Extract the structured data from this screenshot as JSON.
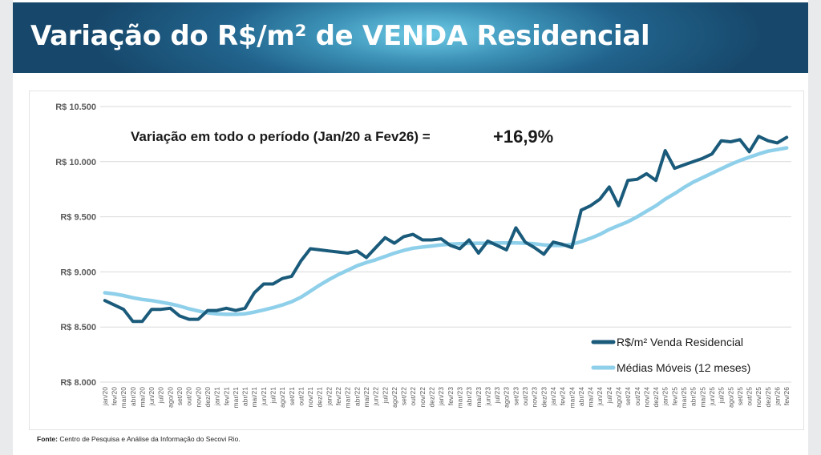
{
  "slide": {
    "title": "Variação do R$/m² de VENDA Residencial",
    "source_label": "Fonte:",
    "source_text": "Centro de Pesquisa e Análise da Informação do Secovi Rio."
  },
  "colors": {
    "series_main": "#1a5a7a",
    "series_avg": "#8ecfea",
    "grid": "#d9d9d9",
    "text": "#595959"
  },
  "chart_data": {
    "type": "line",
    "title": "",
    "xlabel": "",
    "ylabel": "",
    "ylim": [
      8000,
      10500
    ],
    "yticks": [
      8000,
      8500,
      9000,
      9500,
      10000,
      10500
    ],
    "ytick_labels": [
      "R$ 8.000",
      "R$ 8.500",
      "R$ 9.000",
      "R$ 9.500",
      "R$ 10.000",
      "R$ 10.500"
    ],
    "grid": true,
    "legend_position": "bottom-right",
    "annotation": {
      "text": "Variação em todo o período (Jan/20 a Fev26)  =",
      "value": "+16,9%"
    },
    "categories": [
      "jan/20",
      "fev/20",
      "mar/20",
      "abr/20",
      "mai/20",
      "jun/20",
      "jul/20",
      "ago/20",
      "set/20",
      "out/20",
      "nov/20",
      "dez/20",
      "jan/21",
      "fev/21",
      "mar/21",
      "abr/21",
      "mai/21",
      "jun/21",
      "jul/21",
      "ago/21",
      "set/21",
      "out/21",
      "nov/21",
      "dez/21",
      "jan/22",
      "fev/22",
      "mar/22",
      "abr/22",
      "mai/22",
      "jun/22",
      "jul/22",
      "ago/22",
      "set/22",
      "out/22",
      "nov/22",
      "dez/22",
      "jan/23",
      "fev/23",
      "mar/23",
      "abr/23",
      "mai/23",
      "jun/23",
      "jul/23",
      "ago/23",
      "set/23",
      "out/23",
      "nov/23",
      "dez/23",
      "jan/24",
      "fev/24",
      "mar/24",
      "abr/24",
      "mai/24",
      "jun/24",
      "jul/24",
      "ago/24",
      "set/24",
      "out/24",
      "nov/24",
      "dez/24",
      "jan/25",
      "fev/25",
      "mar/25",
      "abr/25",
      "mai/25",
      "jun/25",
      "jul/25",
      "ago/25",
      "set/25",
      "out/25",
      "nov/25",
      "dez/25",
      "jan/26",
      "fev/26"
    ],
    "series": [
      {
        "name": "R$/m² Venda Residencial",
        "values": [
          8740,
          8700,
          8660,
          8550,
          8550,
          8660,
          8660,
          8670,
          8600,
          8570,
          8570,
          8650,
          8650,
          8670,
          8650,
          8670,
          8810,
          8890,
          8890,
          8940,
          8960,
          9100,
          9210,
          9200,
          9190,
          9180,
          9170,
          9190,
          9130,
          9220,
          9310,
          9260,
          9320,
          9340,
          9290,
          9290,
          9300,
          9240,
          9210,
          9290,
          9170,
          9280,
          9240,
          9200,
          9400,
          9270,
          9220,
          9160,
          9270,
          9250,
          9220,
          9560,
          9600,
          9660,
          9770,
          9600,
          9830,
          9840,
          9890,
          9830,
          10100,
          9940,
          9970,
          10000,
          10030,
          10070,
          10190,
          10180,
          10200,
          10090,
          10230,
          10190,
          10170,
          10220
        ]
      },
      {
        "name": "Médias Móveis (12 meses)",
        "values": [
          8810,
          8800,
          8785,
          8765,
          8750,
          8740,
          8725,
          8710,
          8690,
          8665,
          8645,
          8628,
          8620,
          8615,
          8615,
          8620,
          8635,
          8655,
          8675,
          8700,
          8730,
          8770,
          8825,
          8880,
          8930,
          8975,
          9015,
          9055,
          9085,
          9110,
          9140,
          9170,
          9195,
          9215,
          9225,
          9235,
          9245,
          9252,
          9255,
          9258,
          9260,
          9260,
          9262,
          9262,
          9262,
          9260,
          9255,
          9245,
          9240,
          9240,
          9250,
          9275,
          9305,
          9340,
          9385,
          9420,
          9455,
          9500,
          9550,
          9600,
          9660,
          9710,
          9765,
          9815,
          9855,
          9895,
          9935,
          9975,
          10010,
          10040,
          10070,
          10095,
          10110,
          10125
        ]
      }
    ]
  }
}
